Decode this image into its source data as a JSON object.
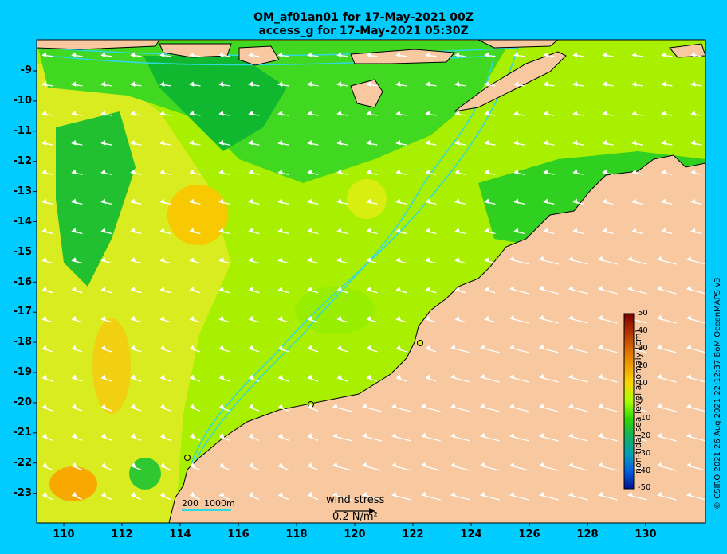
{
  "title_line1": "OM_af01an01 for 17-May-2021 00Z",
  "title_line2": "access_g for 17-May-2021 05:30Z",
  "lat_labels": [
    "-9",
    "-10",
    "-11",
    "-12",
    "-13",
    "-14",
    "-15",
    "-16",
    "-17",
    "-18",
    "-19",
    "-20",
    "-21",
    "-22",
    "-23"
  ],
  "lon_labels": [
    "110",
    "112",
    "114",
    "116",
    "118",
    "120",
    "122",
    "124",
    "126",
    "128",
    "130"
  ],
  "colorbar": {
    "title": "non-tidal sea level anomaly (cm)",
    "ticks": [
      "50",
      "40",
      "30",
      "20",
      "10",
      "0",
      "-10",
      "-20",
      "-30",
      "-40",
      "-50"
    ],
    "colors": [
      "#7a0000",
      "#b03000",
      "#d86800",
      "#f0a000",
      "#f8d800",
      "#a8ff00",
      "#30d800",
      "#10b060",
      "#00a0b0",
      "#0060e0",
      "#001090"
    ]
  },
  "depth_legend": {
    "label1": "200",
    "label2": "1000m"
  },
  "wind_legend": {
    "label": "wind stress",
    "value": "0.2 N/m²"
  },
  "credit": "© CSIRO 2021   26 Aug 2021 22:12:37 BoM OceanMAPS v3",
  "colors": {
    "background": "#00ccff",
    "land": "#f8c8a0",
    "coast": "#000000",
    "contour": "#30d8e0"
  }
}
